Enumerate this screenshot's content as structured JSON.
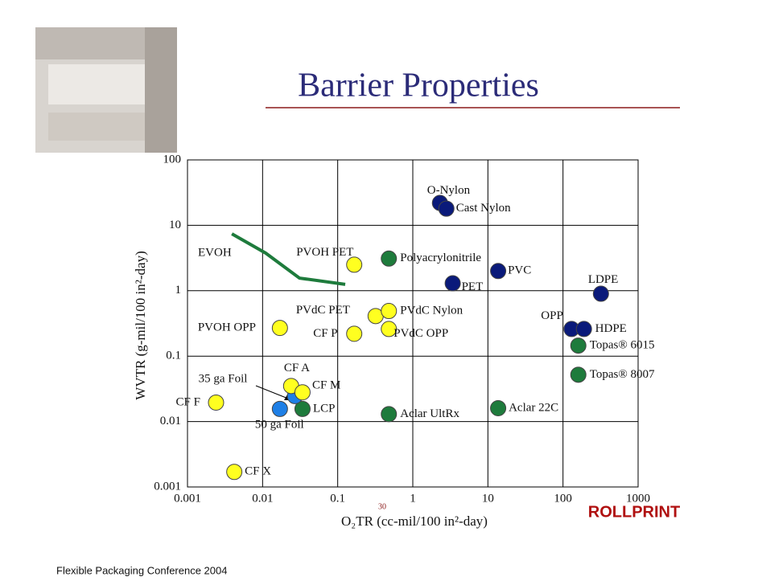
{
  "chart_data": {
    "type": "scatter",
    "title": "Barrier Properties",
    "x_label": "O₂TR (cc-mil/100 in²-day)",
    "y_label": "WVTR (g-mil/100 in²-day)",
    "footer": "Flexible Packaging Conference 2004",
    "page_number": "30",
    "logo": "ROLLPRINT",
    "xlog": true,
    "ylog": true,
    "grid": true,
    "xlim": [
      0.001,
      1000
    ],
    "ylim": [
      0.001,
      100
    ],
    "xticks": [
      0.001,
      0.01,
      0.1,
      1,
      10,
      100,
      1000
    ],
    "yticks": [
      0.001,
      0.01,
      0.1,
      1,
      10,
      100
    ],
    "curves": [
      {
        "name": "EVOH",
        "color": "#1e7b3c",
        "x": [
          0.0039,
          0.011,
          0.031,
          0.126
        ],
        "values": [
          7.4,
          3.76,
          1.56,
          1.25
        ]
      }
    ],
    "points": [
      {
        "label": "O-Nylon",
        "x": 2.3,
        "y": 22,
        "color": "#0a1a7a"
      },
      {
        "label": "Cast Nylon",
        "x": 2.8,
        "y": 18,
        "color": "#0a1a7a"
      },
      {
        "label": "PVC",
        "x": 13.7,
        "y": 2.0,
        "color": "#0a1a7a"
      },
      {
        "label": "PET",
        "x": 3.4,
        "y": 1.3,
        "color": "#0a1a7a"
      },
      {
        "label": "LDPE",
        "x": 320,
        "y": 0.9,
        "color": "#0a1a7a"
      },
      {
        "label": "OPP",
        "x": 130,
        "y": 0.26,
        "color": "#0a1a7a"
      },
      {
        "label": "HDPE",
        "x": 190,
        "y": 0.26,
        "color": "#0a1a7a"
      },
      {
        "label": "Topas® 6015",
        "x": 160,
        "y": 0.145,
        "color": "#1e7b3c"
      },
      {
        "label": "Topas® 8007",
        "x": 160,
        "y": 0.052,
        "color": "#1e7b3c"
      },
      {
        "label": "Aclar 22C",
        "x": 13.7,
        "y": 0.016,
        "color": "#1e7b3c"
      },
      {
        "label": "Aclar UltRx",
        "x": 0.48,
        "y": 0.013,
        "color": "#1e7b3c"
      },
      {
        "label": "Polyacrylonitrile",
        "x": 0.48,
        "y": 3.1,
        "color": "#1e7b3c"
      },
      {
        "label": "LCP",
        "x": 0.034,
        "y": 0.0156,
        "color": "#1e7b3c"
      },
      {
        "label": "50 ga Foil",
        "x": 0.017,
        "y": 0.0156,
        "color": "#1e7fe6"
      },
      {
        "label": "35 ga Foil",
        "x": 0.027,
        "y": 0.0245,
        "color": "#1e7fe6"
      },
      {
        "label": "CF A",
        "x": 0.024,
        "y": 0.035,
        "color": "#ffff20"
      },
      {
        "label": "CF M",
        "x": 0.034,
        "y": 0.028,
        "color": "#ffff20"
      },
      {
        "label": "CF F",
        "x": 0.0024,
        "y": 0.0195,
        "color": "#ffff20"
      },
      {
        "label": "CF X",
        "x": 0.0042,
        "y": 0.0017,
        "color": "#ffff20"
      },
      {
        "label": "PVOH OPP",
        "x": 0.017,
        "y": 0.27,
        "color": "#ffff20"
      },
      {
        "label": "CF P",
        "x": 0.166,
        "y": 0.22,
        "color": "#ffff20"
      },
      {
        "label": "PVdC PET",
        "x": 0.32,
        "y": 0.41,
        "color": "#ffff20"
      },
      {
        "label": "PVdC Nylon",
        "x": 0.48,
        "y": 0.49,
        "color": "#ffff20"
      },
      {
        "label": "PVdC OPP",
        "x": 0.48,
        "y": 0.26,
        "color": "#ffff20"
      },
      {
        "label": "PVOH PET",
        "x": 0.166,
        "y": 2.5,
        "color": "#ffff20"
      }
    ]
  }
}
